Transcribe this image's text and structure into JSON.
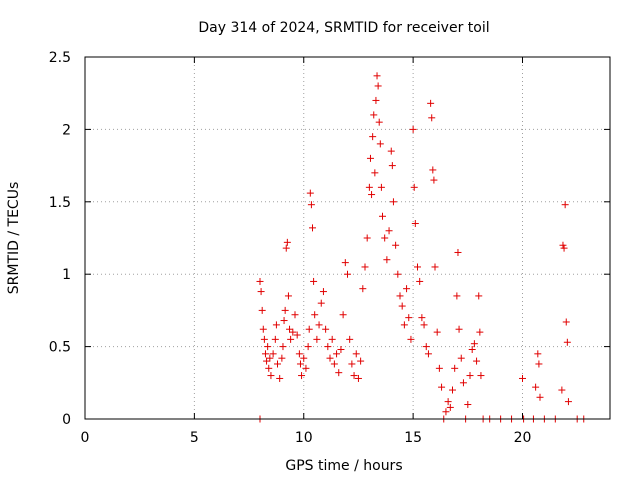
{
  "chart_data": {
    "type": "scatter",
    "title": "Day 314 of 2024, SRMTID for receiver toil",
    "xlabel": "GPS time / hours",
    "ylabel": "SRMTID / TECUs",
    "xlim": [
      0,
      24
    ],
    "ylim": [
      0,
      2.5
    ],
    "xticks": [
      0,
      5,
      10,
      15,
      20
    ],
    "yticks": [
      0,
      0.5,
      1,
      1.5,
      2,
      2.5
    ],
    "xtick_labels": [
      "0",
      "5",
      "10",
      "15",
      "20"
    ],
    "ytick_labels": [
      "0",
      "0.5",
      "1",
      "1.5",
      "2",
      "2.5"
    ],
    "grid": true,
    "marker": "+",
    "color": "#e00000",
    "series": [
      {
        "name": "SRMTID",
        "points": [
          [
            8.0,
            0.0
          ],
          [
            8.0,
            0.95
          ],
          [
            8.05,
            0.88
          ],
          [
            8.1,
            0.75
          ],
          [
            8.15,
            0.62
          ],
          [
            8.2,
            0.55
          ],
          [
            8.25,
            0.45
          ],
          [
            8.3,
            0.4
          ],
          [
            8.35,
            0.5
          ],
          [
            8.4,
            0.35
          ],
          [
            8.45,
            0.42
          ],
          [
            8.5,
            0.3
          ],
          [
            8.6,
            0.45
          ],
          [
            8.7,
            0.55
          ],
          [
            8.75,
            0.65
          ],
          [
            8.8,
            0.38
          ],
          [
            8.9,
            0.28
          ],
          [
            9.0,
            0.42
          ],
          [
            9.05,
            0.5
          ],
          [
            9.1,
            0.68
          ],
          [
            9.15,
            0.75
          ],
          [
            9.2,
            1.18
          ],
          [
            9.25,
            1.22
          ],
          [
            9.3,
            0.85
          ],
          [
            9.35,
            0.62
          ],
          [
            9.4,
            0.55
          ],
          [
            9.5,
            0.6
          ],
          [
            9.6,
            0.72
          ],
          [
            9.7,
            0.58
          ],
          [
            9.8,
            0.45
          ],
          [
            9.85,
            0.38
          ],
          [
            9.9,
            0.3
          ],
          [
            10.0,
            0.42
          ],
          [
            10.1,
            0.35
          ],
          [
            10.2,
            0.5
          ],
          [
            10.25,
            0.62
          ],
          [
            10.3,
            1.56
          ],
          [
            10.35,
            1.48
          ],
          [
            10.4,
            1.32
          ],
          [
            10.45,
            0.95
          ],
          [
            10.5,
            0.72
          ],
          [
            10.6,
            0.55
          ],
          [
            10.7,
            0.65
          ],
          [
            10.8,
            0.8
          ],
          [
            10.9,
            0.88
          ],
          [
            11.0,
            0.62
          ],
          [
            11.1,
            0.5
          ],
          [
            11.2,
            0.42
          ],
          [
            11.3,
            0.55
          ],
          [
            11.4,
            0.38
          ],
          [
            11.5,
            0.45
          ],
          [
            11.6,
            0.32
          ],
          [
            11.7,
            0.48
          ],
          [
            11.8,
            0.72
          ],
          [
            11.9,
            1.08
          ],
          [
            12.0,
            1.0
          ],
          [
            12.1,
            0.55
          ],
          [
            12.2,
            0.38
          ],
          [
            12.3,
            0.3
          ],
          [
            12.4,
            0.45
          ],
          [
            12.5,
            0.28
          ],
          [
            12.6,
            0.4
          ],
          [
            12.7,
            0.9
          ],
          [
            12.8,
            1.05
          ],
          [
            12.9,
            1.25
          ],
          [
            13.0,
            1.6
          ],
          [
            13.05,
            1.8
          ],
          [
            13.1,
            1.55
          ],
          [
            13.15,
            1.95
          ],
          [
            13.2,
            2.1
          ],
          [
            13.25,
            1.7
          ],
          [
            13.3,
            2.2
          ],
          [
            13.35,
            2.37
          ],
          [
            13.4,
            2.3
          ],
          [
            13.45,
            2.05
          ],
          [
            13.5,
            1.9
          ],
          [
            13.55,
            1.6
          ],
          [
            13.6,
            1.4
          ],
          [
            13.7,
            1.25
          ],
          [
            13.8,
            1.1
          ],
          [
            13.9,
            1.3
          ],
          [
            14.0,
            1.85
          ],
          [
            14.05,
            1.75
          ],
          [
            14.1,
            1.5
          ],
          [
            14.2,
            1.2
          ],
          [
            14.3,
            1.0
          ],
          [
            14.4,
            0.85
          ],
          [
            14.5,
            0.78
          ],
          [
            14.6,
            0.65
          ],
          [
            14.7,
            0.9
          ],
          [
            14.8,
            0.7
          ],
          [
            14.9,
            0.55
          ],
          [
            15.0,
            2.0
          ],
          [
            15.05,
            1.6
          ],
          [
            15.1,
            1.35
          ],
          [
            15.2,
            1.05
          ],
          [
            15.3,
            0.95
          ],
          [
            15.4,
            0.7
          ],
          [
            15.5,
            0.65
          ],
          [
            15.6,
            0.5
          ],
          [
            15.7,
            0.45
          ],
          [
            15.8,
            2.18
          ],
          [
            15.85,
            2.08
          ],
          [
            15.9,
            1.72
          ],
          [
            15.95,
            1.65
          ],
          [
            16.0,
            1.05
          ],
          [
            16.1,
            0.6
          ],
          [
            16.2,
            0.35
          ],
          [
            16.3,
            0.22
          ],
          [
            16.4,
            0.0
          ],
          [
            16.5,
            0.05
          ],
          [
            16.6,
            0.12
          ],
          [
            16.7,
            0.08
          ],
          [
            16.8,
            0.2
          ],
          [
            16.9,
            0.35
          ],
          [
            17.0,
            0.85
          ],
          [
            17.05,
            1.15
          ],
          [
            17.1,
            0.62
          ],
          [
            17.2,
            0.42
          ],
          [
            17.3,
            0.25
          ],
          [
            17.4,
            0.0
          ],
          [
            17.5,
            0.1
          ],
          [
            17.6,
            0.3
          ],
          [
            17.7,
            0.48
          ],
          [
            17.8,
            0.52
          ],
          [
            17.9,
            0.4
          ],
          [
            18.0,
            0.85
          ],
          [
            18.05,
            0.6
          ],
          [
            18.1,
            0.3
          ],
          [
            18.2,
            0.0
          ],
          [
            18.5,
            0.0
          ],
          [
            19.0,
            0.0
          ],
          [
            19.5,
            0.0
          ],
          [
            20.0,
            0.28
          ],
          [
            20.05,
            0.0
          ],
          [
            20.5,
            0.0
          ],
          [
            20.6,
            0.22
          ],
          [
            20.7,
            0.45
          ],
          [
            20.75,
            0.38
          ],
          [
            20.8,
            0.15
          ],
          [
            21.0,
            0.0
          ],
          [
            21.5,
            0.0
          ],
          [
            21.8,
            0.2
          ],
          [
            21.85,
            1.2
          ],
          [
            21.9,
            1.18
          ],
          [
            21.95,
            1.48
          ],
          [
            22.0,
            0.67
          ],
          [
            22.05,
            0.53
          ],
          [
            22.1,
            0.12
          ],
          [
            22.5,
            0.0
          ],
          [
            22.8,
            0.0
          ]
        ]
      }
    ]
  }
}
